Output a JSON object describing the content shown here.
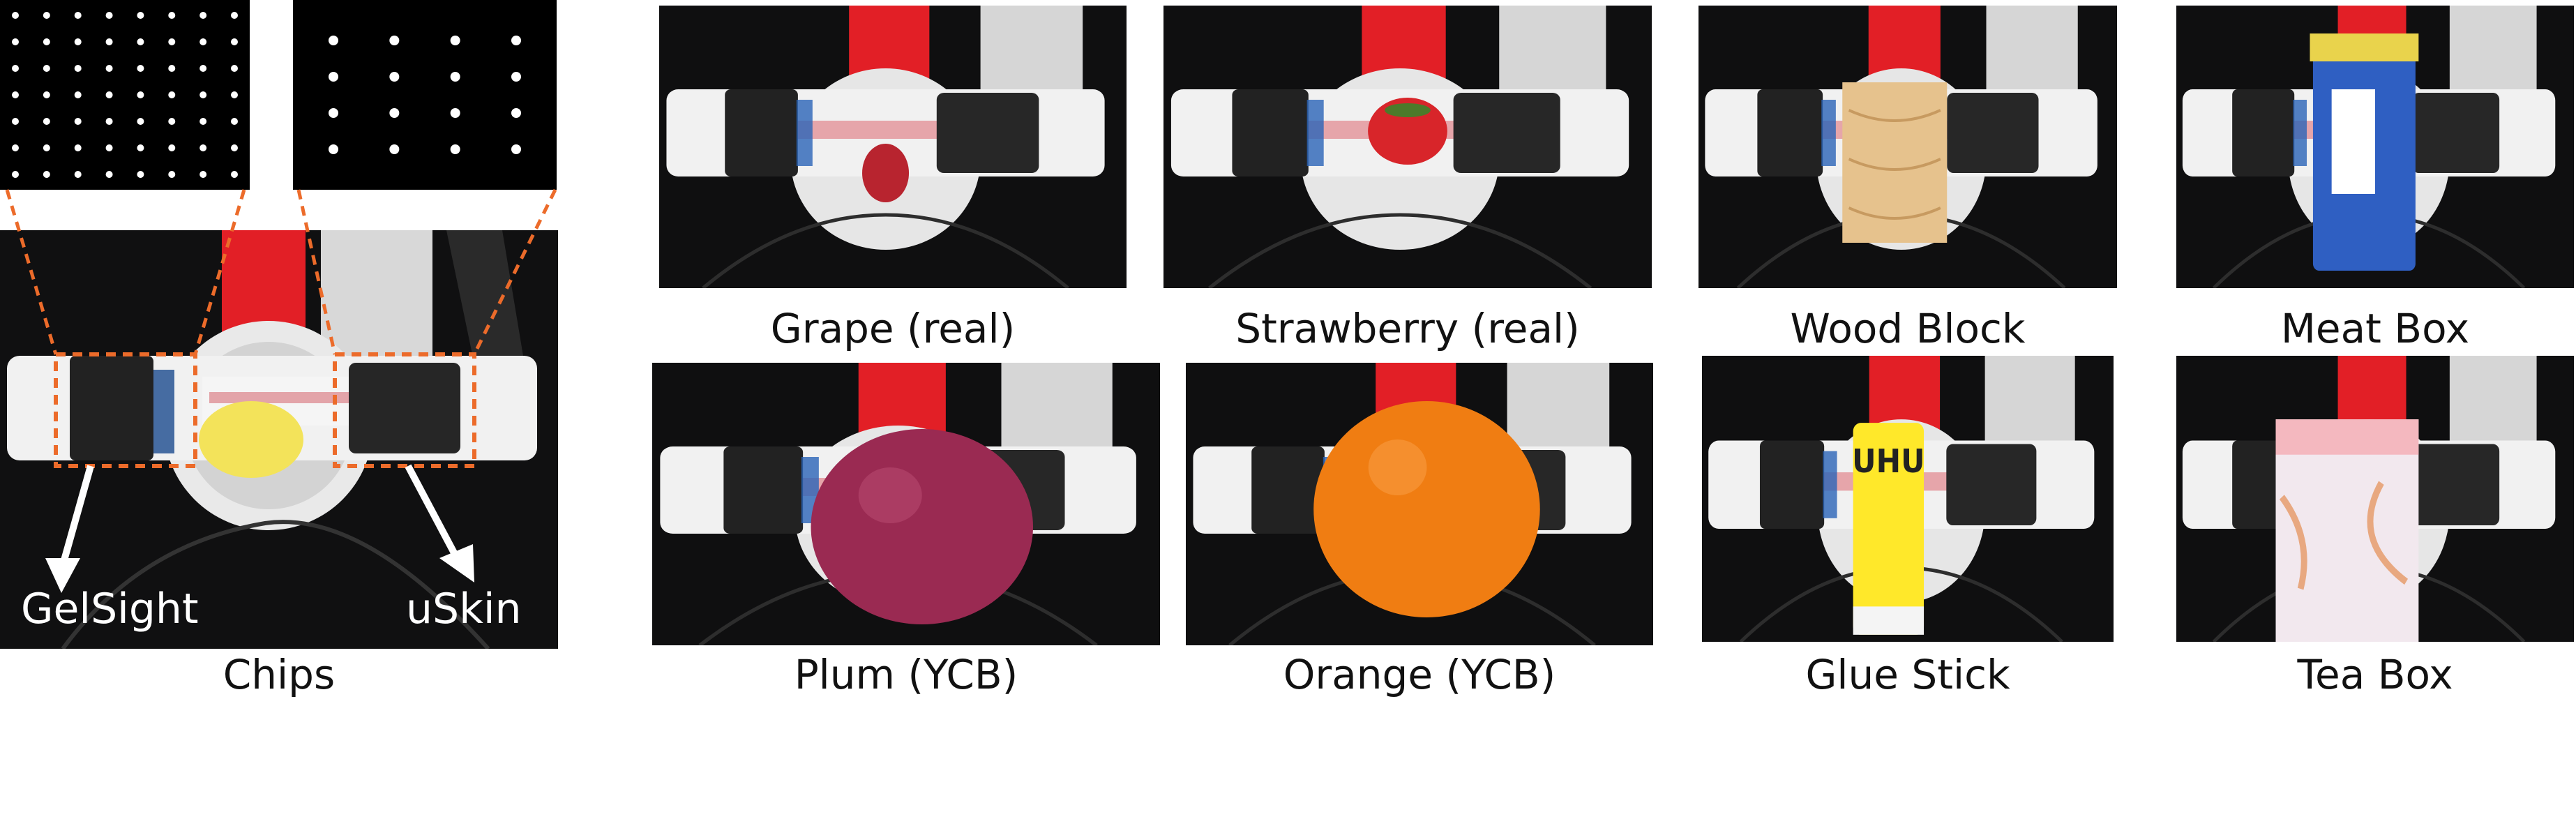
{
  "figure": {
    "left_group": {
      "caption": "Chips",
      "sensor_labels": {
        "left": "GelSight",
        "right": "uSkin"
      },
      "marker_panels": [
        "dense dot marker pattern",
        "sparse dot marker pattern"
      ]
    },
    "objects": [
      {
        "caption": "Grape (real)",
        "object": "grape",
        "color": "#b8242f"
      },
      {
        "caption": "Strawberry (real)",
        "object": "strawberry",
        "color": "#d8252a"
      },
      {
        "caption": "Wood Block",
        "object": "wood",
        "color": "#e6c28d"
      },
      {
        "caption": "Meat Box",
        "object": "can",
        "color": "#2f5fc2"
      },
      {
        "caption": "Plum (YCB)",
        "object": "plum",
        "color": "#9a2a52"
      },
      {
        "caption": "Orange (YCB)",
        "object": "orange",
        "color": "#f07d12"
      },
      {
        "caption": "Glue Stick",
        "object": "glue",
        "color": "#ffe82a"
      },
      {
        "caption": "Tea Box",
        "object": "teabox",
        "color": "#f2e8ee"
      }
    ],
    "colors": {
      "dashed_outline": "#ec6b2a",
      "robot_red": "#e21f26",
      "gripper_white": "#f1f1f1",
      "sensor_black": "#222222",
      "chips_yellow": "#f3e35a"
    }
  }
}
